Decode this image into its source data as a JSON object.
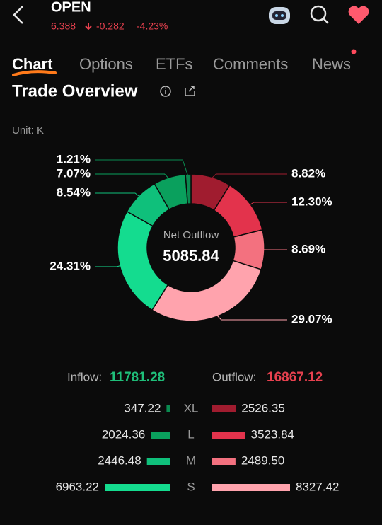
{
  "header": {
    "symbol": "OPEN",
    "price": "6.388",
    "change": "-0.282",
    "change_pct": "-4.23%"
  },
  "tabs": [
    "Chart",
    "Options",
    "ETFs",
    "Comments",
    "News"
  ],
  "section_title": "Trade Overview",
  "unit": "Unit: K",
  "chart_data": [
    {
      "type": "pie",
      "donut": true,
      "center_label": "Net Outflow",
      "center_value": "5085.84",
      "values": [
        8.82,
        12.3,
        8.69,
        29.07,
        24.31,
        8.54,
        7.07,
        1.21
      ],
      "value_labels": [
        "8.82%",
        "12.30%",
        "8.69%",
        "29.07%",
        "24.31%",
        "8.54%",
        "7.07%",
        "1.21%"
      ],
      "colors": [
        "#a01c2f",
        "#e3334c",
        "#f3717f",
        "#ffa3ad",
        "#14dc8f",
        "#0fc07b",
        "#0aa05d",
        "#0a8b50"
      ]
    },
    {
      "type": "bar",
      "orientation": "horizontal",
      "categories": [
        "XL",
        "L",
        "M",
        "S"
      ],
      "series": [
        {
          "name": "Inflow:",
          "total": "11781.28",
          "color": "#16d98d",
          "total_color": "#1fbf7a",
          "values": [
            347.22,
            2024.36,
            2446.48,
            6963.22
          ],
          "value_labels": [
            "347.22",
            "2024.36",
            "2446.48",
            "6963.22"
          ],
          "colors": [
            "#0a8b50",
            "#0aa05d",
            "#0fc07b",
            "#14dc8f"
          ]
        },
        {
          "name": "Outflow:",
          "total": "16867.12",
          "color": "#ffa3ad",
          "total_color": "#e8414f",
          "values": [
            2526.35,
            3523.84,
            2489.5,
            8327.42
          ],
          "value_labels": [
            "2526.35",
            "3523.84",
            "2489.50",
            "8327.42"
          ],
          "colors": [
            "#a01c2f",
            "#e3334c",
            "#f3717f",
            "#ffa3ad"
          ]
        }
      ]
    }
  ]
}
